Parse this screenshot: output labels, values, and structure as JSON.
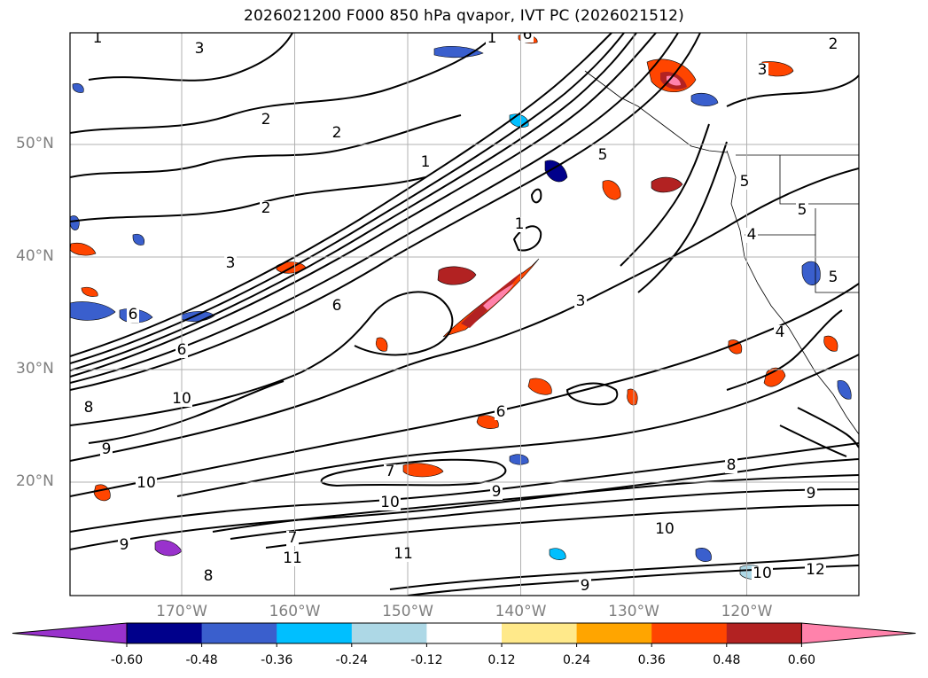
{
  "title": "2026021200 F000 850 hPa qvapor, IVT PC (2026021512)",
  "lat_labels": [
    {
      "text": "50°N",
      "lat": 50
    },
    {
      "text": "40°N",
      "lat": 40
    },
    {
      "text": "30°N",
      "lat": 30
    },
    {
      "text": "20°N",
      "lat": 20
    }
  ],
  "lon_labels": [
    {
      "text": "170°W",
      "lon": -170
    },
    {
      "text": "160°W",
      "lon": -160
    },
    {
      "text": "150°W",
      "lon": -150
    },
    {
      "text": "140°W",
      "lon": -140
    },
    {
      "text": "130°W",
      "lon": -130
    },
    {
      "text": "120°W",
      "lon": -120
    }
  ],
  "colorbar": {
    "colors": [
      "#9932cc",
      "#00008b",
      "#3a5fcd",
      "#00bfff",
      "#add8e6",
      "#ffffff",
      "#ffe98a",
      "#ffa500",
      "#ff4500",
      "#b22222",
      "#ff82ab"
    ],
    "ticks": [
      "-0.60",
      "-0.48",
      "-0.36",
      "-0.24",
      "-0.12",
      "0.12",
      "0.24",
      "0.36",
      "0.48",
      "0.60"
    ]
  },
  "contour_labels": [
    "1",
    "1",
    "1",
    "1",
    "2",
    "2",
    "2",
    "2",
    "3",
    "3",
    "3",
    "3",
    "4",
    "4",
    "5",
    "5",
    "5",
    "5",
    "6",
    "6",
    "6",
    "6",
    "6",
    "7",
    "7",
    "8",
    "8",
    "8",
    "9",
    "9",
    "9",
    "9",
    "9",
    "10",
    "10",
    "10",
    "10",
    "10",
    "11",
    "11",
    "12"
  ],
  "colors": {
    "land": "#ffffff",
    "contour": "#000000",
    "grid": "#b0b0b0",
    "label_gray": "#7f7f7f"
  }
}
